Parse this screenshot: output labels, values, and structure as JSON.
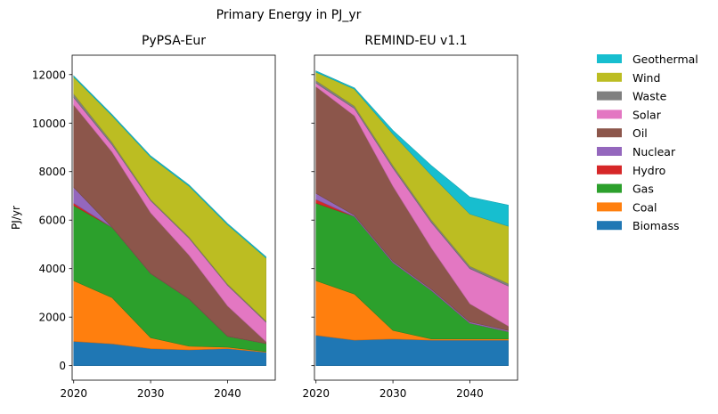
{
  "figure_title": "Primary Energy in PJ_yr",
  "colors": {
    "Biomass": "#1f77b4",
    "Coal": "#ff7f0e",
    "Gas": "#2ca02c",
    "Hydro": "#d62728",
    "Nuclear": "#9467bd",
    "Oil": "#8c564b",
    "Solar": "#e377c2",
    "Waste": "#7f7f7f",
    "Wind": "#bcbd22",
    "Geothermal": "#17becf"
  },
  "legend_order": [
    "Geothermal",
    "Wind",
    "Waste",
    "Solar",
    "Oil",
    "Nuclear",
    "Hydro",
    "Gas",
    "Coal",
    "Biomass"
  ],
  "chart_data": [
    {
      "type": "area",
      "stacked": true,
      "title": "PyPSA-Eur",
      "xlabel": "",
      "ylabel": "PJ/yr",
      "x": [
        2020,
        2025,
        2030,
        2035,
        2040,
        2045
      ],
      "xticks": [
        2020,
        2030,
        2040
      ],
      "yticks": [
        0,
        2000,
        4000,
        6000,
        8000,
        10000,
        12000
      ],
      "ylim": [
        -600,
        12800
      ],
      "xlim": [
        2019.8,
        2046.2
      ],
      "series": [
        {
          "name": "Biomass",
          "values": [
            1000,
            900,
            700,
            650,
            700,
            550
          ]
        },
        {
          "name": "Coal",
          "values": [
            2500,
            1900,
            450,
            150,
            60,
            30
          ]
        },
        {
          "name": "Gas",
          "values": [
            3100,
            2900,
            2650,
            1950,
            450,
            330
          ]
        },
        {
          "name": "Hydro",
          "values": [
            100,
            0,
            0,
            0,
            0,
            0
          ]
        },
        {
          "name": "Nuclear",
          "values": [
            650,
            0,
            0,
            0,
            0,
            0
          ]
        },
        {
          "name": "Oil",
          "values": [
            3400,
            3100,
            2500,
            1800,
            1250,
            80
          ]
        },
        {
          "name": "Solar",
          "values": [
            300,
            300,
            500,
            700,
            850,
            800
          ]
        },
        {
          "name": "Waste",
          "values": [
            150,
            100,
            50,
            50,
            50,
            50
          ]
        },
        {
          "name": "Wind",
          "values": [
            700,
            1100,
            1750,
            2100,
            2450,
            2600
          ]
        },
        {
          "name": "Geothermal",
          "values": [
            50,
            50,
            50,
            50,
            50,
            50
          ]
        }
      ]
    },
    {
      "type": "area",
      "stacked": true,
      "title": "REMIND-EU v1.1",
      "xlabel": "",
      "ylabel": "",
      "x": [
        2020,
        2025,
        2030,
        2035,
        2040,
        2045
      ],
      "xticks": [
        2020,
        2030,
        2040
      ],
      "yticks": [
        0,
        2000,
        4000,
        6000,
        8000,
        10000,
        12000
      ],
      "show_ytick_labels": false,
      "ylim": [
        -600,
        12800
      ],
      "xlim": [
        2019.8,
        2046.2
      ],
      "series": [
        {
          "name": "Biomass",
          "values": [
            1250,
            1050,
            1100,
            1050,
            1050,
            1050
          ]
        },
        {
          "name": "Coal",
          "values": [
            2250,
            1900,
            350,
            50,
            50,
            50
          ]
        },
        {
          "name": "Gas",
          "values": [
            3200,
            3200,
            2800,
            2000,
            650,
            300
          ]
        },
        {
          "name": "Hydro",
          "values": [
            150,
            0,
            0,
            0,
            0,
            0
          ]
        },
        {
          "name": "Nuclear",
          "values": [
            250,
            50,
            50,
            50,
            50,
            50
          ]
        },
        {
          "name": "Oil",
          "values": [
            4400,
            4100,
            3100,
            1700,
            750,
            180
          ]
        },
        {
          "name": "Solar",
          "values": [
            150,
            300,
            750,
            1050,
            1450,
            1650
          ]
        },
        {
          "name": "Waste",
          "values": [
            100,
            100,
            100,
            100,
            100,
            100
          ]
        },
        {
          "name": "Wind",
          "values": [
            350,
            700,
            1300,
            1850,
            2150,
            2370
          ]
        },
        {
          "name": "Geothermal",
          "values": [
            50,
            50,
            150,
            400,
            700,
            870
          ]
        }
      ]
    }
  ]
}
